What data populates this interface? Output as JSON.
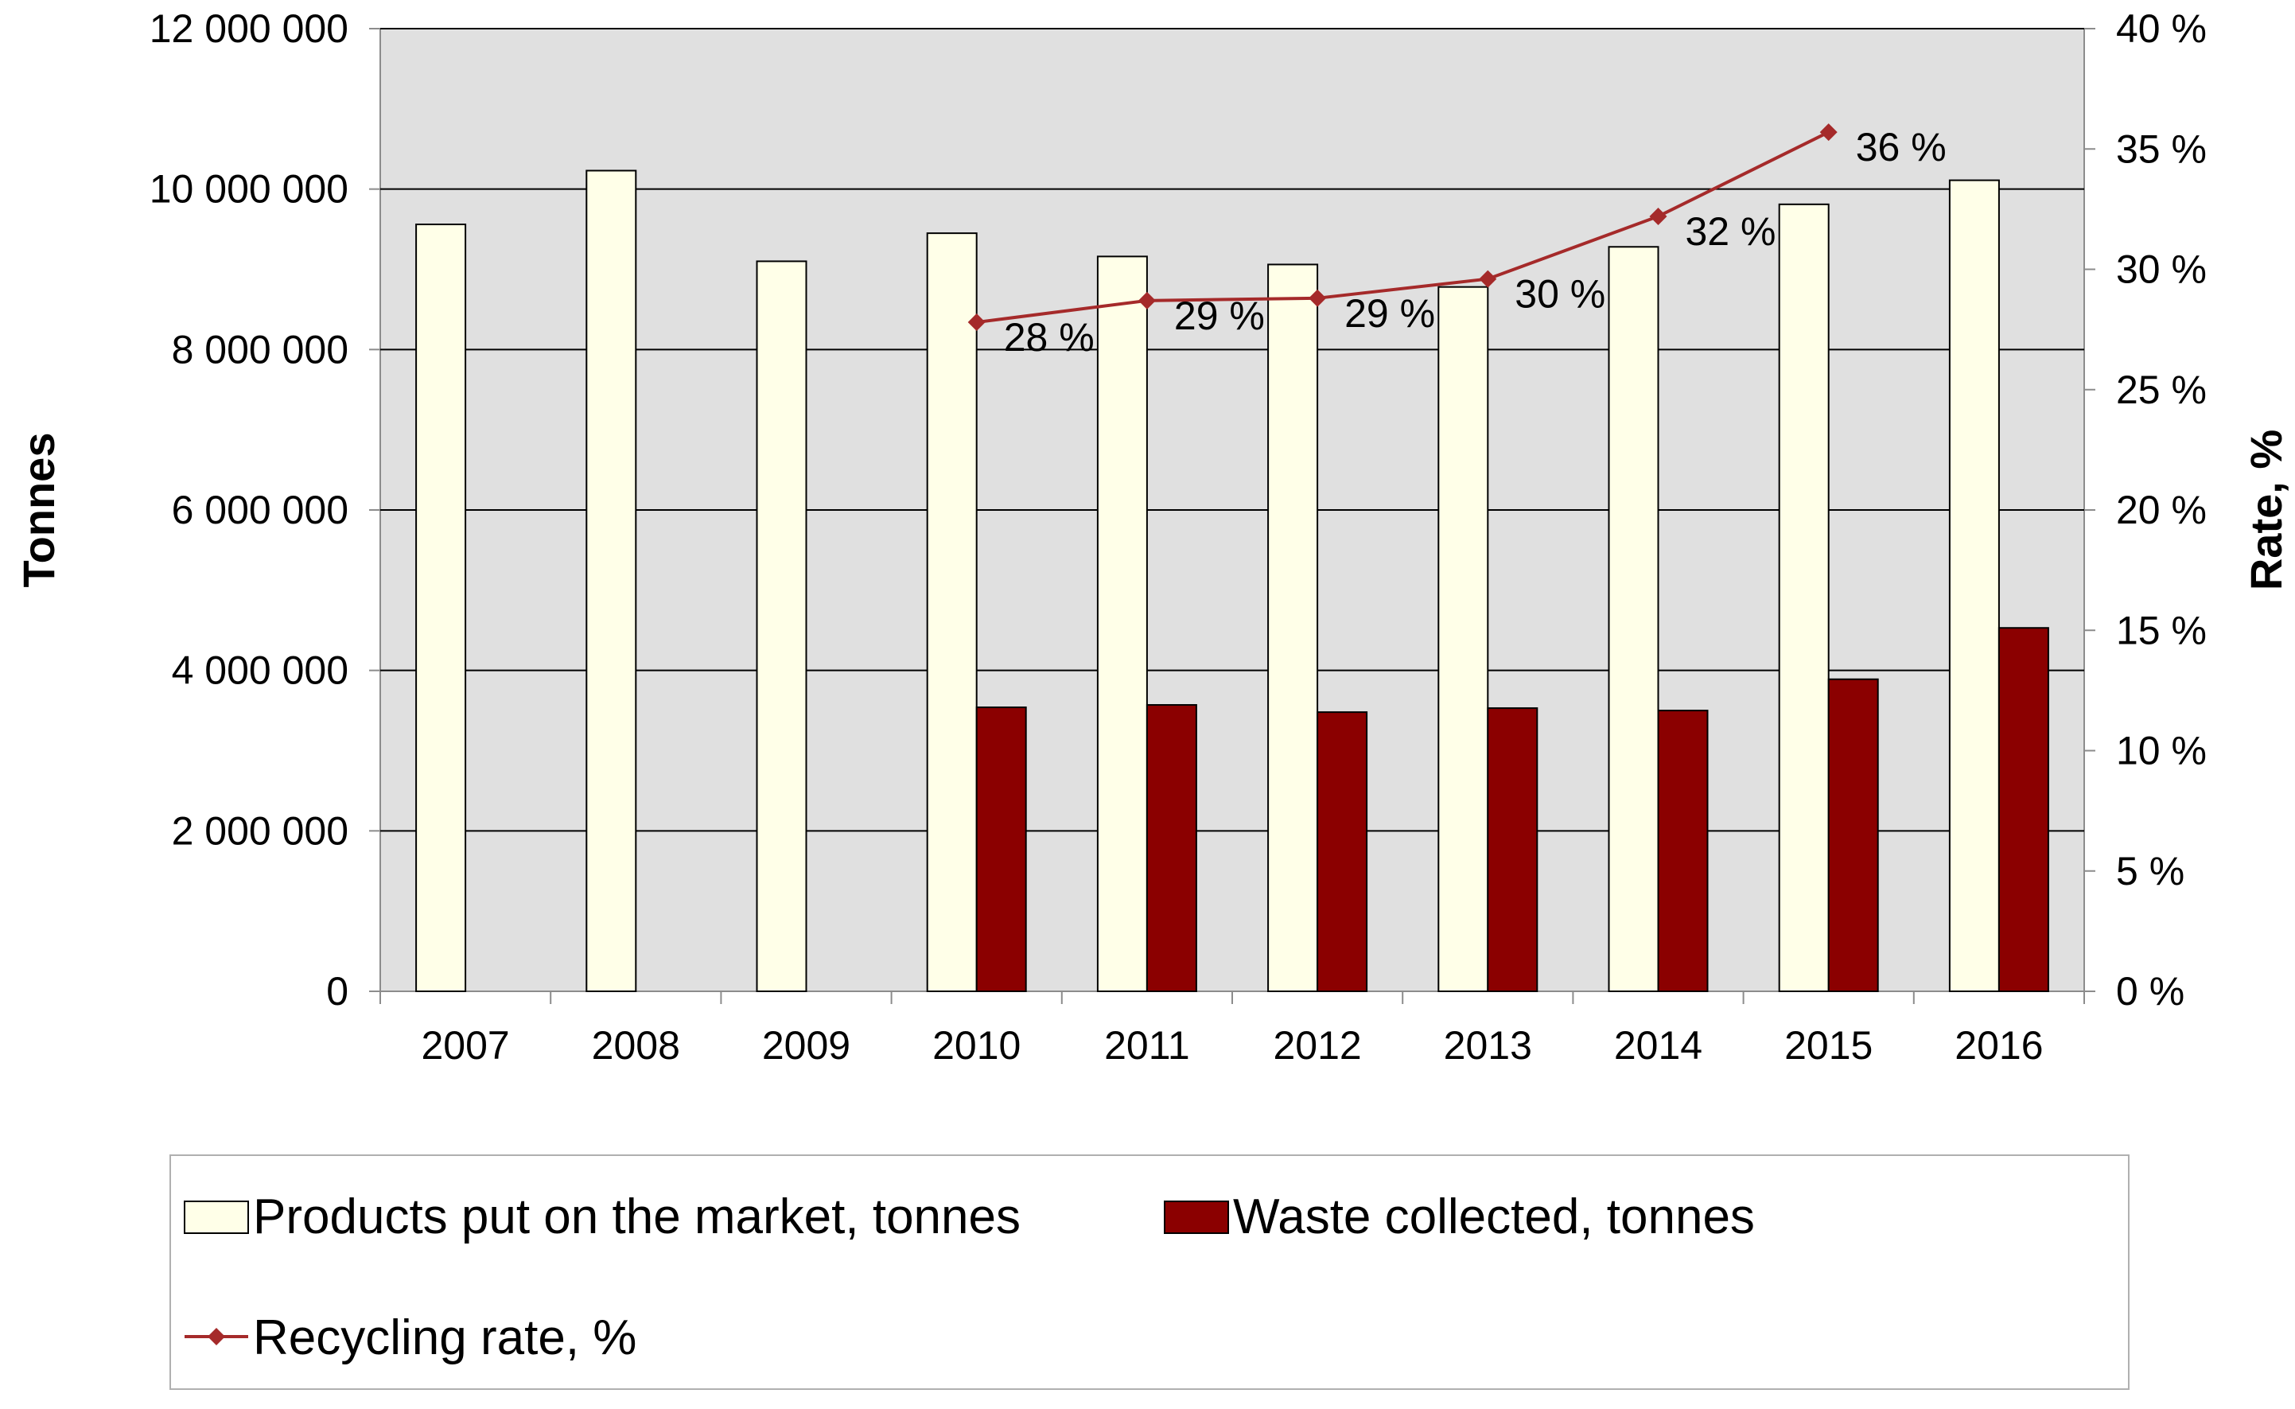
{
  "chart_data": {
    "type": "bar+line",
    "categories": [
      "2007",
      "2008",
      "2009",
      "2010",
      "2011",
      "2012",
      "2013",
      "2014",
      "2015",
      "2016"
    ],
    "series": [
      {
        "name": "Products put on the market, tonnes",
        "type": "bar",
        "axis": "left",
        "color": "#FFFFE8",
        "values": [
          9560000,
          10230000,
          9100000,
          9450000,
          9160000,
          9060000,
          8780000,
          9280000,
          9810000,
          10110000
        ]
      },
      {
        "name": "Waste collected, tonnes",
        "type": "bar",
        "axis": "left",
        "color": "#8B0000",
        "values": [
          null,
          null,
          null,
          3540000,
          3570000,
          3480000,
          3530000,
          3500000,
          3890000,
          4530000
        ]
      },
      {
        "name": "Recycling rate, %",
        "type": "line",
        "axis": "right",
        "color": "#A52A2A",
        "values": [
          null,
          null,
          null,
          27.8,
          28.7,
          28.8,
          29.6,
          32.2,
          35.7,
          null
        ],
        "data_labels": [
          null,
          null,
          null,
          "28 %",
          "29 %",
          "29 %",
          "30 %",
          "32 %",
          "36 %",
          null
        ]
      }
    ],
    "left_axis": {
      "title": "Tonnes",
      "min": 0,
      "max": 12000000,
      "ticks": [
        0,
        2000000,
        4000000,
        6000000,
        8000000,
        10000000,
        12000000
      ],
      "tick_labels": [
        "0",
        "2 000 000",
        "4 000 000",
        "6 000 000",
        "8 000 000",
        "10 000 000",
        "12 000 000"
      ]
    },
    "right_axis": {
      "title": "Rate, %",
      "min": 0,
      "max": 40,
      "ticks": [
        0,
        5,
        10,
        15,
        20,
        25,
        30,
        35,
        40
      ],
      "tick_labels": [
        "0 %",
        "5 %",
        "10 %",
        "15 %",
        "20 %",
        "25 %",
        "30 %",
        "35 %",
        "40 %"
      ]
    },
    "grid": true,
    "plot_background": "#E0E0E0",
    "legend_position": "bottom"
  }
}
